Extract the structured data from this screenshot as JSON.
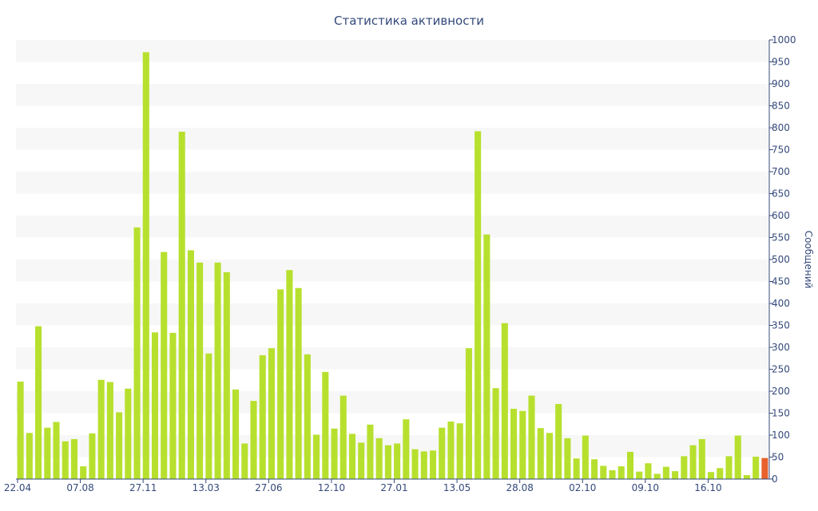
{
  "chart_data": {
    "type": "bar",
    "title": "Статистика активности",
    "ylabel": "Сообщений",
    "xlabel": "",
    "ylim": [
      0,
      1000
    ],
    "y_ticks": [
      0,
      50,
      100,
      150,
      200,
      250,
      300,
      350,
      400,
      450,
      500,
      550,
      600,
      650,
      700,
      750,
      800,
      850,
      900,
      950,
      1000
    ],
    "y_axis_side": "right",
    "x_tick_labels": [
      {
        "label": "22.04",
        "index": 0
      },
      {
        "label": "07.08",
        "index": 7
      },
      {
        "label": "27.11",
        "index": 14
      },
      {
        "label": "13.03",
        "index": 21
      },
      {
        "label": "27.06",
        "index": 28
      },
      {
        "label": "12.10",
        "index": 35
      },
      {
        "label": "27.01",
        "index": 42
      },
      {
        "label": "13.05",
        "index": 49
      },
      {
        "label": "28.08",
        "index": 56
      },
      {
        "label": "02.10",
        "index": 63
      },
      {
        "label": "09.10",
        "index": 70
      },
      {
        "label": "16.10",
        "index": 77
      }
    ],
    "grid": "horizontal alternating bands",
    "colors": {
      "bar": "#b7e02e",
      "bar_highlight": "#e8612c",
      "band": "#f7f7f7",
      "axis": "#34497a",
      "text": "#34497a"
    },
    "values": [
      222,
      105,
      348,
      117,
      130,
      86,
      91,
      29,
      104,
      226,
      221,
      152,
      206,
      573,
      972,
      334,
      517,
      333,
      791,
      521,
      493,
      286,
      493,
      471,
      204,
      81,
      178,
      282,
      298,
      432,
      476,
      435,
      284,
      101,
      244,
      115,
      190,
      103,
      83,
      124,
      93,
      77,
      81,
      136,
      68,
      63,
      65,
      117,
      131,
      127,
      298,
      792,
      557,
      207,
      355,
      160,
      155,
      190,
      116,
      105,
      171,
      93,
      47,
      99,
      45,
      30,
      20,
      29,
      62,
      17,
      36,
      12,
      28,
      18,
      52,
      77,
      91,
      16,
      25,
      52,
      99,
      9,
      51,
      48
    ],
    "highlight_index": 83
  }
}
